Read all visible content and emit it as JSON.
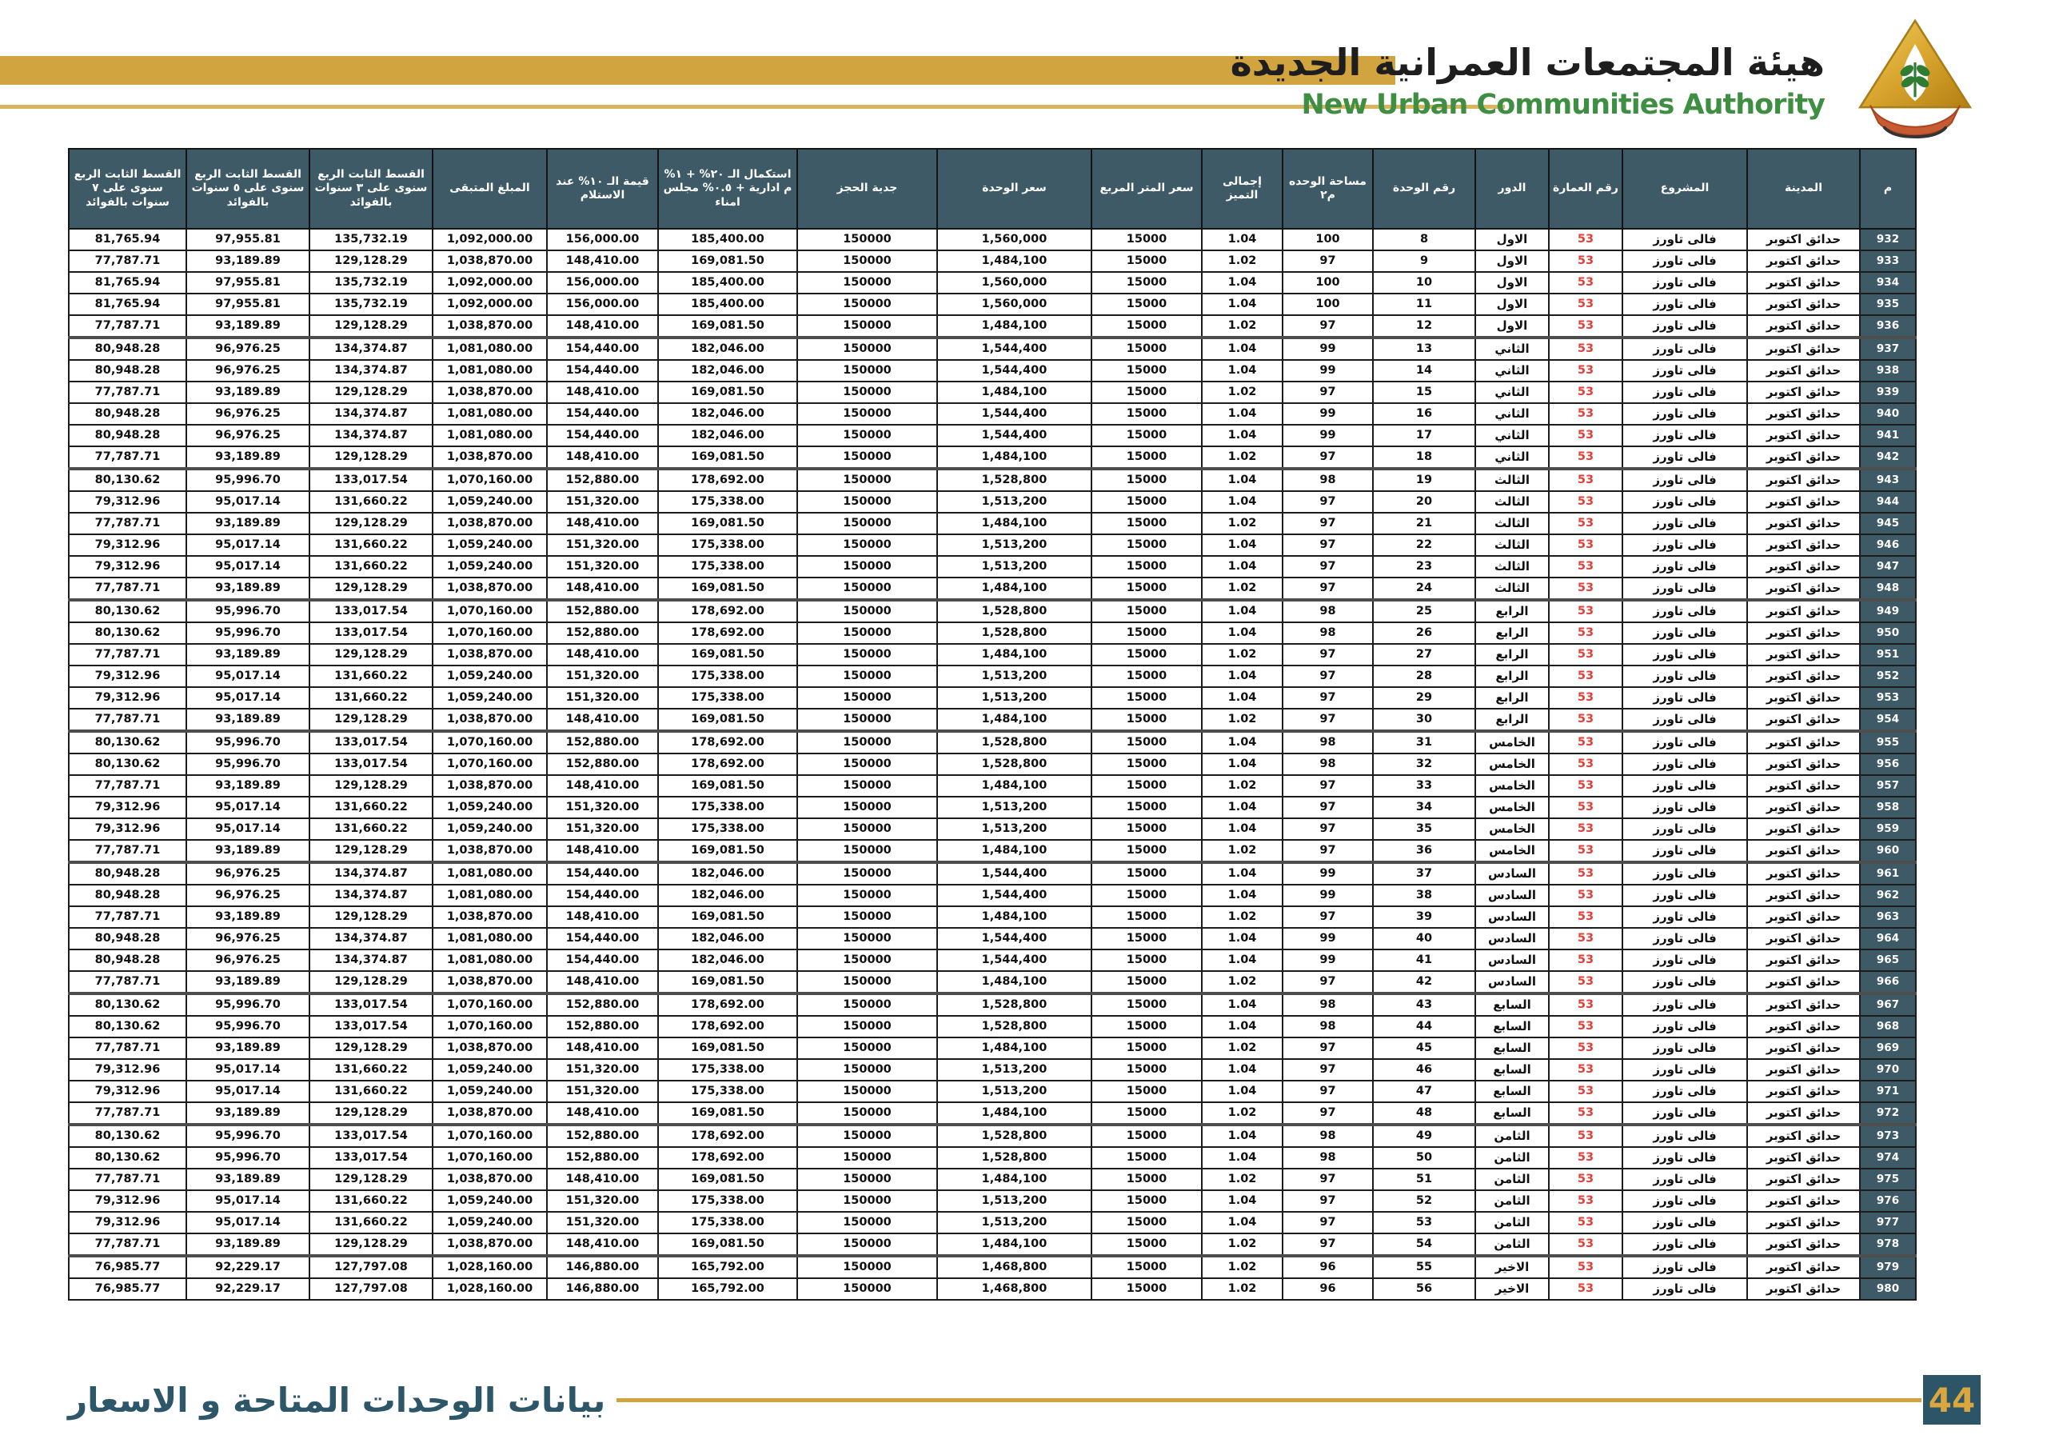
{
  "header": {
    "title_ar": "هيئة المجتمعات العمرانية الجديدة",
    "title_en": "New Urban Communities Authority",
    "logo_icon": "nuca-logo"
  },
  "footer": {
    "caption": "بيانات الوحدات المتاحة و الاسعار",
    "page_number": "44"
  },
  "colors": {
    "accent_gold": "#d2a440",
    "header_teal": "#3e5a67",
    "building_red": "#e3403a",
    "title_green": "#3f8f43",
    "footer_teal": "#2d5768"
  },
  "table": {
    "column_keys": [
      "m",
      "city",
      "project",
      "building",
      "floor",
      "unit",
      "area",
      "premium",
      "sqm-price",
      "unit-price",
      "booking",
      "completion",
      "handover",
      "remaining",
      "inst-3y",
      "inst-5y",
      "inst-7y"
    ],
    "columns": [
      "م",
      "المدينة",
      "المشروع",
      "رقم العمارة",
      "الدور",
      "رقم الوحدة",
      "مساحة الوحده م٢",
      "إجمالى التميز",
      "سعر المتر المربع",
      "سعر الوحدة",
      "جدية الحجز",
      "استكمال الـ ٢٠% + ١% م ادارية + ٠.٥% مجلس امناء",
      "قيمة الـ ١٠% عند الاستلام",
      "المبلغ المتبقى",
      "القسط الثابت الربع سنوى على ٣ سنوات بالفوائد",
      "القسط الثابت الربع سنوى على ٥ سنوات بالفوائد",
      "القسط الثابت الربع سنوى على ٧ سنوات بالفوائد"
    ],
    "rows": [
      [
        "932",
        "حدائق اكتوبر",
        "فالى تاورز",
        "53",
        "الاول",
        "8",
        "100",
        "1.04",
        "15000",
        "1,560,000",
        "150000",
        "185,400.00",
        "156,000.00",
        "1,092,000.00",
        "135,732.19",
        "97,955.81",
        "81,765.94"
      ],
      [
        "933",
        "حدائق اكتوبر",
        "فالى تاورز",
        "53",
        "الاول",
        "9",
        "97",
        "1.02",
        "15000",
        "1,484,100",
        "150000",
        "169,081.50",
        "148,410.00",
        "1,038,870.00",
        "129,128.29",
        "93,189.89",
        "77,787.71"
      ],
      [
        "934",
        "حدائق اكتوبر",
        "فالى تاورز",
        "53",
        "الاول",
        "10",
        "100",
        "1.04",
        "15000",
        "1,560,000",
        "150000",
        "185,400.00",
        "156,000.00",
        "1,092,000.00",
        "135,732.19",
        "97,955.81",
        "81,765.94"
      ],
      [
        "935",
        "حدائق اكتوبر",
        "فالى تاورز",
        "53",
        "الاول",
        "11",
        "100",
        "1.04",
        "15000",
        "1,560,000",
        "150000",
        "185,400.00",
        "156,000.00",
        "1,092,000.00",
        "135,732.19",
        "97,955.81",
        "81,765.94"
      ],
      [
        "936",
        "حدائق اكتوبر",
        "فالى تاورز",
        "53",
        "الاول",
        "12",
        "97",
        "1.02",
        "15000",
        "1,484,100",
        "150000",
        "169,081.50",
        "148,410.00",
        "1,038,870.00",
        "129,128.29",
        "93,189.89",
        "77,787.71"
      ],
      [
        "937",
        "حدائق اكتوبر",
        "فالى تاورز",
        "53",
        "الثاني",
        "13",
        "99",
        "1.04",
        "15000",
        "1,544,400",
        "150000",
        "182,046.00",
        "154,440.00",
        "1,081,080.00",
        "134,374.87",
        "96,976.25",
        "80,948.28"
      ],
      [
        "938",
        "حدائق اكتوبر",
        "فالى تاورز",
        "53",
        "الثاني",
        "14",
        "99",
        "1.04",
        "15000",
        "1,544,400",
        "150000",
        "182,046.00",
        "154,440.00",
        "1,081,080.00",
        "134,374.87",
        "96,976.25",
        "80,948.28"
      ],
      [
        "939",
        "حدائق اكتوبر",
        "فالى تاورز",
        "53",
        "الثاني",
        "15",
        "97",
        "1.02",
        "15000",
        "1,484,100",
        "150000",
        "169,081.50",
        "148,410.00",
        "1,038,870.00",
        "129,128.29",
        "93,189.89",
        "77,787.71"
      ],
      [
        "940",
        "حدائق اكتوبر",
        "فالى تاورز",
        "53",
        "الثاني",
        "16",
        "99",
        "1.04",
        "15000",
        "1,544,400",
        "150000",
        "182,046.00",
        "154,440.00",
        "1,081,080.00",
        "134,374.87",
        "96,976.25",
        "80,948.28"
      ],
      [
        "941",
        "حدائق اكتوبر",
        "فالى تاورز",
        "53",
        "الثاني",
        "17",
        "99",
        "1.04",
        "15000",
        "1,544,400",
        "150000",
        "182,046.00",
        "154,440.00",
        "1,081,080.00",
        "134,374.87",
        "96,976.25",
        "80,948.28"
      ],
      [
        "942",
        "حدائق اكتوبر",
        "فالى تاورز",
        "53",
        "الثاني",
        "18",
        "97",
        "1.02",
        "15000",
        "1,484,100",
        "150000",
        "169,081.50",
        "148,410.00",
        "1,038,870.00",
        "129,128.29",
        "93,189.89",
        "77,787.71"
      ],
      [
        "943",
        "حدائق اكتوبر",
        "فالى تاورز",
        "53",
        "الثالث",
        "19",
        "98",
        "1.04",
        "15000",
        "1,528,800",
        "150000",
        "178,692.00",
        "152,880.00",
        "1,070,160.00",
        "133,017.54",
        "95,996.70",
        "80,130.62"
      ],
      [
        "944",
        "حدائق اكتوبر",
        "فالى تاورز",
        "53",
        "الثالث",
        "20",
        "97",
        "1.04",
        "15000",
        "1,513,200",
        "150000",
        "175,338.00",
        "151,320.00",
        "1,059,240.00",
        "131,660.22",
        "95,017.14",
        "79,312.96"
      ],
      [
        "945",
        "حدائق اكتوبر",
        "فالى تاورز",
        "53",
        "الثالث",
        "21",
        "97",
        "1.02",
        "15000",
        "1,484,100",
        "150000",
        "169,081.50",
        "148,410.00",
        "1,038,870.00",
        "129,128.29",
        "93,189.89",
        "77,787.71"
      ],
      [
        "946",
        "حدائق اكتوبر",
        "فالى تاورز",
        "53",
        "الثالث",
        "22",
        "97",
        "1.04",
        "15000",
        "1,513,200",
        "150000",
        "175,338.00",
        "151,320.00",
        "1,059,240.00",
        "131,660.22",
        "95,017.14",
        "79,312.96"
      ],
      [
        "947",
        "حدائق اكتوبر",
        "فالى تاورز",
        "53",
        "الثالث",
        "23",
        "97",
        "1.04",
        "15000",
        "1,513,200",
        "150000",
        "175,338.00",
        "151,320.00",
        "1,059,240.00",
        "131,660.22",
        "95,017.14",
        "79,312.96"
      ],
      [
        "948",
        "حدائق اكتوبر",
        "فالى تاورز",
        "53",
        "الثالث",
        "24",
        "97",
        "1.02",
        "15000",
        "1,484,100",
        "150000",
        "169,081.50",
        "148,410.00",
        "1,038,870.00",
        "129,128.29",
        "93,189.89",
        "77,787.71"
      ],
      [
        "949",
        "حدائق اكتوبر",
        "فالى تاورز",
        "53",
        "الرابع",
        "25",
        "98",
        "1.04",
        "15000",
        "1,528,800",
        "150000",
        "178,692.00",
        "152,880.00",
        "1,070,160.00",
        "133,017.54",
        "95,996.70",
        "80,130.62"
      ],
      [
        "950",
        "حدائق اكتوبر",
        "فالى تاورز",
        "53",
        "الرابع",
        "26",
        "98",
        "1.04",
        "15000",
        "1,528,800",
        "150000",
        "178,692.00",
        "152,880.00",
        "1,070,160.00",
        "133,017.54",
        "95,996.70",
        "80,130.62"
      ],
      [
        "951",
        "حدائق اكتوبر",
        "فالى تاورز",
        "53",
        "الرابع",
        "27",
        "97",
        "1.02",
        "15000",
        "1,484,100",
        "150000",
        "169,081.50",
        "148,410.00",
        "1,038,870.00",
        "129,128.29",
        "93,189.89",
        "77,787.71"
      ],
      [
        "952",
        "حدائق اكتوبر",
        "فالى تاورز",
        "53",
        "الرابع",
        "28",
        "97",
        "1.04",
        "15000",
        "1,513,200",
        "150000",
        "175,338.00",
        "151,320.00",
        "1,059,240.00",
        "131,660.22",
        "95,017.14",
        "79,312.96"
      ],
      [
        "953",
        "حدائق اكتوبر",
        "فالى تاورز",
        "53",
        "الرابع",
        "29",
        "97",
        "1.04",
        "15000",
        "1,513,200",
        "150000",
        "175,338.00",
        "151,320.00",
        "1,059,240.00",
        "131,660.22",
        "95,017.14",
        "79,312.96"
      ],
      [
        "954",
        "حدائق اكتوبر",
        "فالى تاورز",
        "53",
        "الرابع",
        "30",
        "97",
        "1.02",
        "15000",
        "1,484,100",
        "150000",
        "169,081.50",
        "148,410.00",
        "1,038,870.00",
        "129,128.29",
        "93,189.89",
        "77,787.71"
      ],
      [
        "955",
        "حدائق اكتوبر",
        "فالى تاورز",
        "53",
        "الخامس",
        "31",
        "98",
        "1.04",
        "15000",
        "1,528,800",
        "150000",
        "178,692.00",
        "152,880.00",
        "1,070,160.00",
        "133,017.54",
        "95,996.70",
        "80,130.62"
      ],
      [
        "956",
        "حدائق اكتوبر",
        "فالى تاورز",
        "53",
        "الخامس",
        "32",
        "98",
        "1.04",
        "15000",
        "1,528,800",
        "150000",
        "178,692.00",
        "152,880.00",
        "1,070,160.00",
        "133,017.54",
        "95,996.70",
        "80,130.62"
      ],
      [
        "957",
        "حدائق اكتوبر",
        "فالى تاورز",
        "53",
        "الخامس",
        "33",
        "97",
        "1.02",
        "15000",
        "1,484,100",
        "150000",
        "169,081.50",
        "148,410.00",
        "1,038,870.00",
        "129,128.29",
        "93,189.89",
        "77,787.71"
      ],
      [
        "958",
        "حدائق اكتوبر",
        "فالى تاورز",
        "53",
        "الخامس",
        "34",
        "97",
        "1.04",
        "15000",
        "1,513,200",
        "150000",
        "175,338.00",
        "151,320.00",
        "1,059,240.00",
        "131,660.22",
        "95,017.14",
        "79,312.96"
      ],
      [
        "959",
        "حدائق اكتوبر",
        "فالى تاورز",
        "53",
        "الخامس",
        "35",
        "97",
        "1.04",
        "15000",
        "1,513,200",
        "150000",
        "175,338.00",
        "151,320.00",
        "1,059,240.00",
        "131,660.22",
        "95,017.14",
        "79,312.96"
      ],
      [
        "960",
        "حدائق اكتوبر",
        "فالى تاورز",
        "53",
        "الخامس",
        "36",
        "97",
        "1.02",
        "15000",
        "1,484,100",
        "150000",
        "169,081.50",
        "148,410.00",
        "1,038,870.00",
        "129,128.29",
        "93,189.89",
        "77,787.71"
      ],
      [
        "961",
        "حدائق اكتوبر",
        "فالى تاورز",
        "53",
        "السادس",
        "37",
        "99",
        "1.04",
        "15000",
        "1,544,400",
        "150000",
        "182,046.00",
        "154,440.00",
        "1,081,080.00",
        "134,374.87",
        "96,976.25",
        "80,948.28"
      ],
      [
        "962",
        "حدائق اكتوبر",
        "فالى تاورز",
        "53",
        "السادس",
        "38",
        "99",
        "1.04",
        "15000",
        "1,544,400",
        "150000",
        "182,046.00",
        "154,440.00",
        "1,081,080.00",
        "134,374.87",
        "96,976.25",
        "80,948.28"
      ],
      [
        "963",
        "حدائق اكتوبر",
        "فالى تاورز",
        "53",
        "السادس",
        "39",
        "97",
        "1.02",
        "15000",
        "1,484,100",
        "150000",
        "169,081.50",
        "148,410.00",
        "1,038,870.00",
        "129,128.29",
        "93,189.89",
        "77,787.71"
      ],
      [
        "964",
        "حدائق اكتوبر",
        "فالى تاورز",
        "53",
        "السادس",
        "40",
        "99",
        "1.04",
        "15000",
        "1,544,400",
        "150000",
        "182,046.00",
        "154,440.00",
        "1,081,080.00",
        "134,374.87",
        "96,976.25",
        "80,948.28"
      ],
      [
        "965",
        "حدائق اكتوبر",
        "فالى تاورز",
        "53",
        "السادس",
        "41",
        "99",
        "1.04",
        "15000",
        "1,544,400",
        "150000",
        "182,046.00",
        "154,440.00",
        "1,081,080.00",
        "134,374.87",
        "96,976.25",
        "80,948.28"
      ],
      [
        "966",
        "حدائق اكتوبر",
        "فالى تاورز",
        "53",
        "السادس",
        "42",
        "97",
        "1.02",
        "15000",
        "1,484,100",
        "150000",
        "169,081.50",
        "148,410.00",
        "1,038,870.00",
        "129,128.29",
        "93,189.89",
        "77,787.71"
      ],
      [
        "967",
        "حدائق اكتوبر",
        "فالى تاورز",
        "53",
        "السابع",
        "43",
        "98",
        "1.04",
        "15000",
        "1,528,800",
        "150000",
        "178,692.00",
        "152,880.00",
        "1,070,160.00",
        "133,017.54",
        "95,996.70",
        "80,130.62"
      ],
      [
        "968",
        "حدائق اكتوبر",
        "فالى تاورز",
        "53",
        "السابع",
        "44",
        "98",
        "1.04",
        "15000",
        "1,528,800",
        "150000",
        "178,692.00",
        "152,880.00",
        "1,070,160.00",
        "133,017.54",
        "95,996.70",
        "80,130.62"
      ],
      [
        "969",
        "حدائق اكتوبر",
        "فالى تاورز",
        "53",
        "السابع",
        "45",
        "97",
        "1.02",
        "15000",
        "1,484,100",
        "150000",
        "169,081.50",
        "148,410.00",
        "1,038,870.00",
        "129,128.29",
        "93,189.89",
        "77,787.71"
      ],
      [
        "970",
        "حدائق اكتوبر",
        "فالى تاورز",
        "53",
        "السابع",
        "46",
        "97",
        "1.04",
        "15000",
        "1,513,200",
        "150000",
        "175,338.00",
        "151,320.00",
        "1,059,240.00",
        "131,660.22",
        "95,017.14",
        "79,312.96"
      ],
      [
        "971",
        "حدائق اكتوبر",
        "فالى تاورز",
        "53",
        "السابع",
        "47",
        "97",
        "1.04",
        "15000",
        "1,513,200",
        "150000",
        "175,338.00",
        "151,320.00",
        "1,059,240.00",
        "131,660.22",
        "95,017.14",
        "79,312.96"
      ],
      [
        "972",
        "حدائق اكتوبر",
        "فالى تاورز",
        "53",
        "السابع",
        "48",
        "97",
        "1.02",
        "15000",
        "1,484,100",
        "150000",
        "169,081.50",
        "148,410.00",
        "1,038,870.00",
        "129,128.29",
        "93,189.89",
        "77,787.71"
      ],
      [
        "973",
        "حدائق اكتوبر",
        "فالى تاورز",
        "53",
        "الثامن",
        "49",
        "98",
        "1.04",
        "15000",
        "1,528,800",
        "150000",
        "178,692.00",
        "152,880.00",
        "1,070,160.00",
        "133,017.54",
        "95,996.70",
        "80,130.62"
      ],
      [
        "974",
        "حدائق اكتوبر",
        "فالى تاورز",
        "53",
        "الثامن",
        "50",
        "98",
        "1.04",
        "15000",
        "1,528,800",
        "150000",
        "178,692.00",
        "152,880.00",
        "1,070,160.00",
        "133,017.54",
        "95,996.70",
        "80,130.62"
      ],
      [
        "975",
        "حدائق اكتوبر",
        "فالى تاورز",
        "53",
        "الثامن",
        "51",
        "97",
        "1.02",
        "15000",
        "1,484,100",
        "150000",
        "169,081.50",
        "148,410.00",
        "1,038,870.00",
        "129,128.29",
        "93,189.89",
        "77,787.71"
      ],
      [
        "976",
        "حدائق اكتوبر",
        "فالى تاورز",
        "53",
        "الثامن",
        "52",
        "97",
        "1.04",
        "15000",
        "1,513,200",
        "150000",
        "175,338.00",
        "151,320.00",
        "1,059,240.00",
        "131,660.22",
        "95,017.14",
        "79,312.96"
      ],
      [
        "977",
        "حدائق اكتوبر",
        "فالى تاورز",
        "53",
        "الثامن",
        "53",
        "97",
        "1.04",
        "15000",
        "1,513,200",
        "150000",
        "175,338.00",
        "151,320.00",
        "1,059,240.00",
        "131,660.22",
        "95,017.14",
        "79,312.96"
      ],
      [
        "978",
        "حدائق اكتوبر",
        "فالى تاورز",
        "53",
        "الثامن",
        "54",
        "97",
        "1.02",
        "15000",
        "1,484,100",
        "150000",
        "169,081.50",
        "148,410.00",
        "1,038,870.00",
        "129,128.29",
        "93,189.89",
        "77,787.71"
      ],
      [
        "979",
        "حدائق اكتوبر",
        "فالى تاورز",
        "53",
        "الاخير",
        "55",
        "96",
        "1.02",
        "15000",
        "1,468,800",
        "150000",
        "165,792.00",
        "146,880.00",
        "1,028,160.00",
        "127,797.08",
        "92,229.17",
        "76,985.77"
      ],
      [
        "980",
        "حدائق اكتوبر",
        "فالى تاورز",
        "53",
        "الاخير",
        "56",
        "96",
        "1.02",
        "15000",
        "1,468,800",
        "150000",
        "165,792.00",
        "146,880.00",
        "1,028,160.00",
        "127,797.08",
        "92,229.17",
        "76,985.77"
      ]
    ]
  }
}
